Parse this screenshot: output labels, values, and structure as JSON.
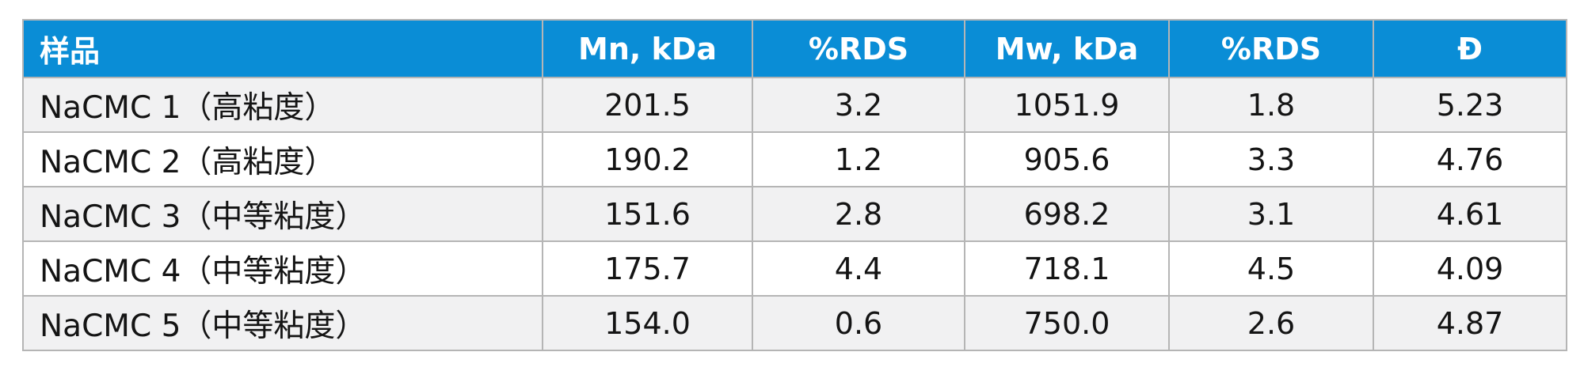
{
  "table": {
    "headers": [
      "样品",
      "Mn, kDa",
      "%RDS",
      "Mw, kDa",
      "%RDS",
      "Đ"
    ],
    "rows": [
      [
        "NaCMC 1（高粘度）",
        "201.5",
        "3.2",
        "1051.9",
        "1.8",
        "5.23"
      ],
      [
        "NaCMC 2（高粘度）",
        "190.2",
        "1.2",
        "905.6",
        "3.3",
        "4.76"
      ],
      [
        "NaCMC 3（中等粘度）",
        "151.6",
        "2.8",
        "698.2",
        "3.1",
        "4.61"
      ],
      [
        "NaCMC 4（中等粘度）",
        "175.7",
        "4.4",
        "718.1",
        "4.5",
        "4.09"
      ],
      [
        "NaCMC 5（中等粘度）",
        "154.0",
        "0.6",
        "750.0",
        "2.6",
        "4.87"
      ]
    ]
  },
  "colors": {
    "header_background": "#0a8dd6",
    "header_text": "#ffffff",
    "odd_row_background": "#f1f1f2",
    "even_row_background": "#ffffff",
    "border": "#b5b5b5"
  }
}
